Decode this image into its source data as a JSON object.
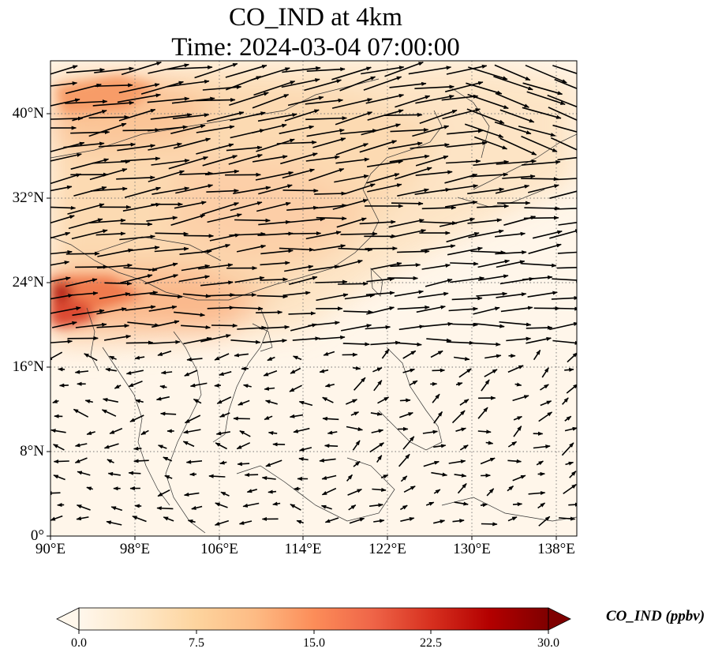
{
  "title": {
    "line1": "CO_IND at 4km",
    "line2": "Time: 2024-03-04 07:00:00"
  },
  "map": {
    "lon_ticks": [
      "90°E",
      "98°E",
      "106°E",
      "114°E",
      "122°E",
      "130°E",
      "138°E"
    ],
    "lat_ticks": [
      "0°",
      "8°N",
      "16°N",
      "24°N",
      "32°N",
      "40°N"
    ],
    "gridlines": "dotted",
    "extent": {
      "lon": [
        90,
        140
      ],
      "lat": [
        0,
        45
      ]
    }
  },
  "colorbar": {
    "label": "CO_IND (ppbv)",
    "ticks": [
      "0.0",
      "7.5",
      "15.0",
      "22.5",
      "30.0"
    ],
    "range": [
      0,
      30
    ],
    "colormap": "OrRd",
    "extend": "both",
    "colors": [
      "#fff7ec",
      "#fee8c8",
      "#fdd49e",
      "#fdbb84",
      "#fc8d59",
      "#ef6548",
      "#d7301f",
      "#b30000",
      "#7f0000"
    ]
  }
}
